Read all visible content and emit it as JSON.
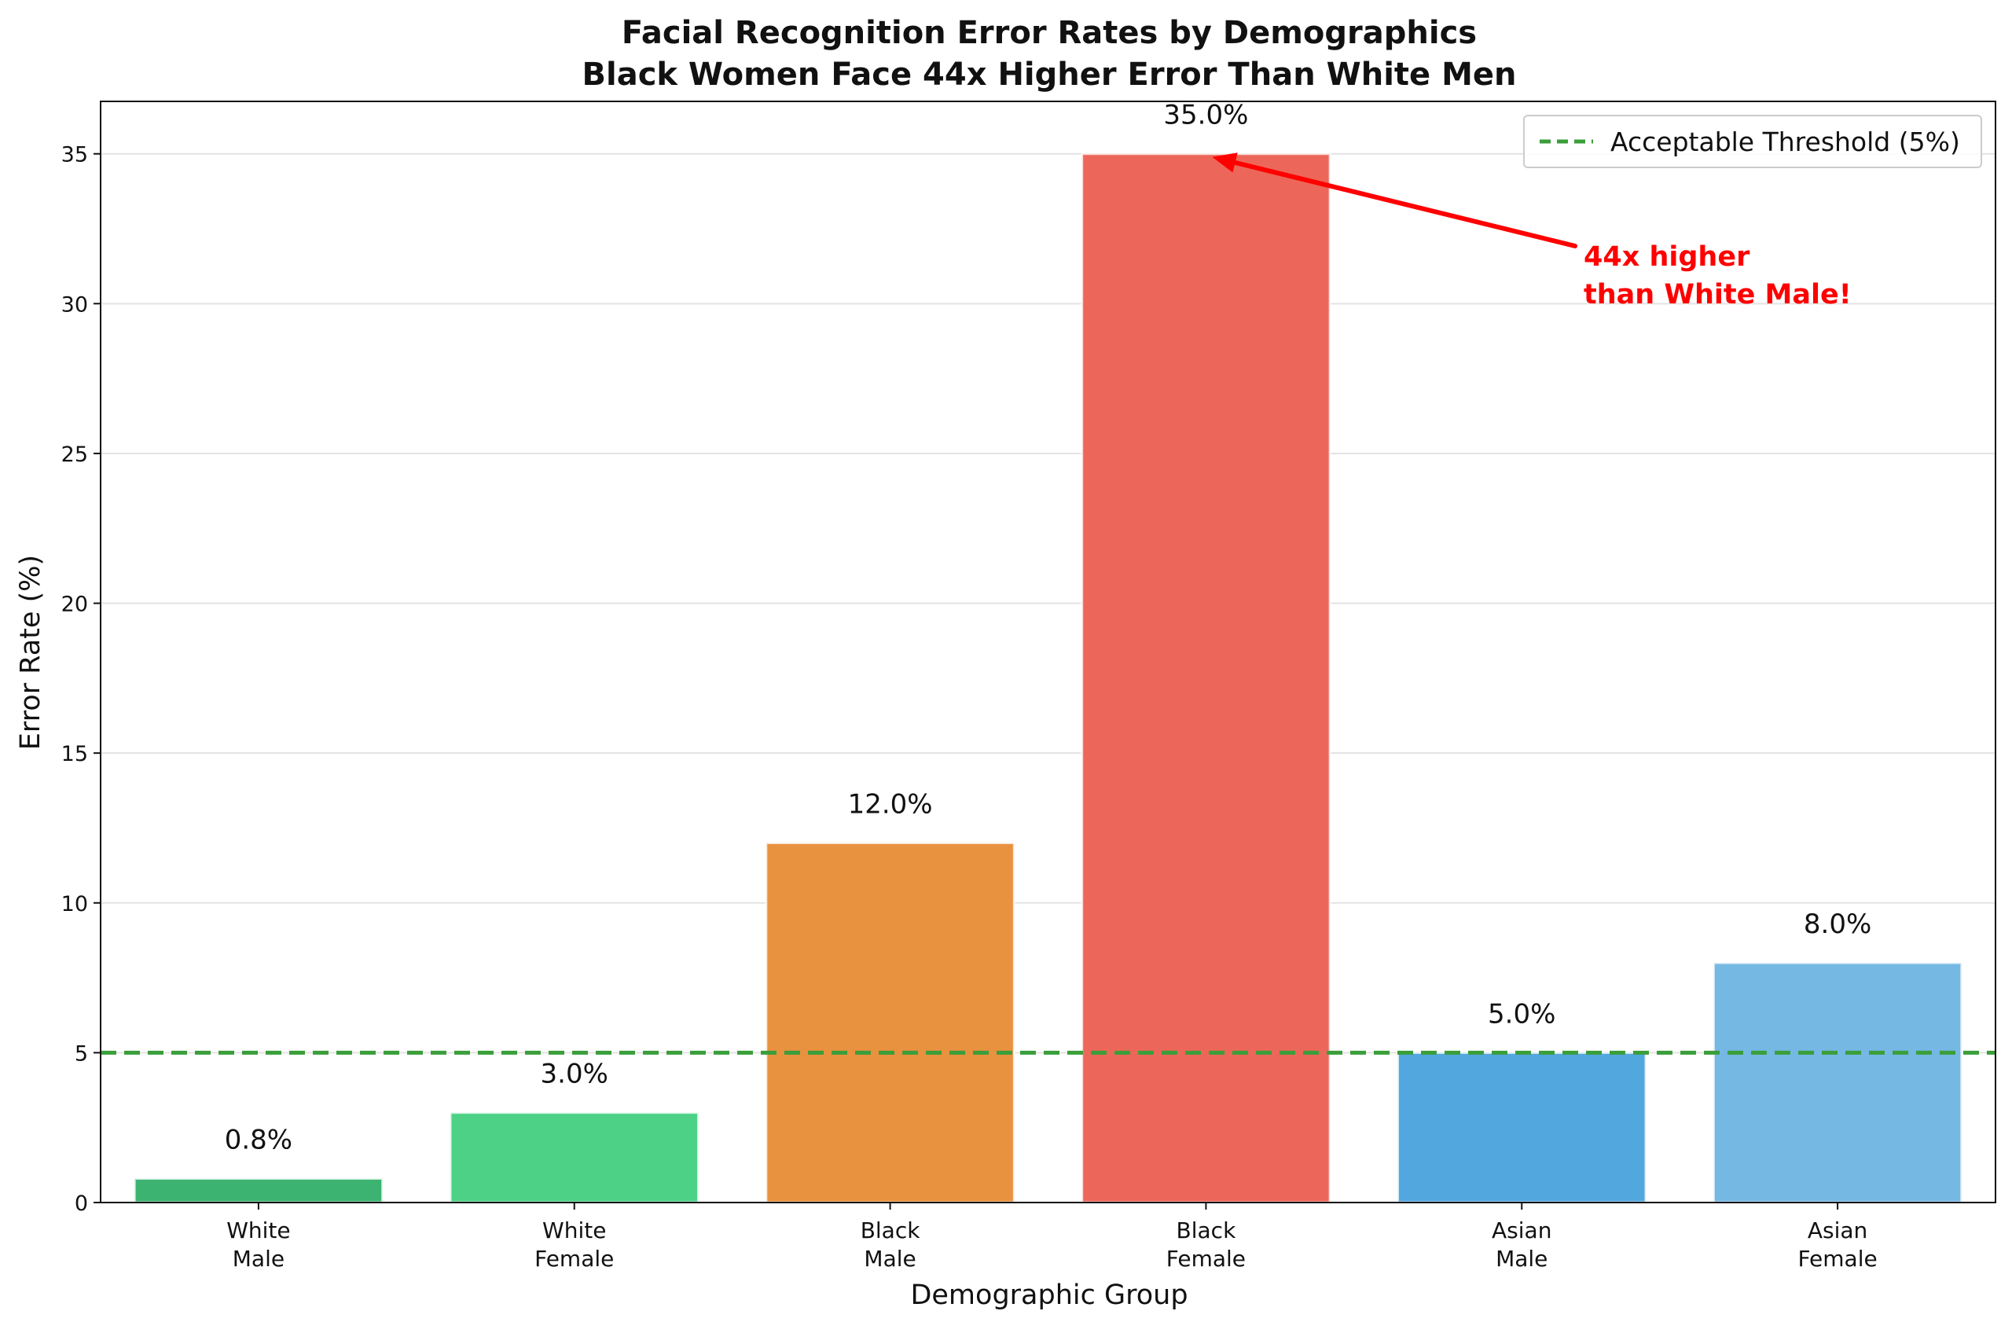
{
  "chart_data": {
    "type": "bar",
    "title_lines": [
      "Facial Recognition Error Rates by Demographics",
      "Black Women Face 44x Higher Error Than White Men"
    ],
    "xlabel": "Demographic Group",
    "ylabel": "Error Rate (%)",
    "ylim": [
      0,
      36.75
    ],
    "yticks": [
      0,
      5,
      10,
      15,
      20,
      25,
      30,
      35
    ],
    "grid": "horizontal",
    "categories": [
      [
        "White",
        "Male"
      ],
      [
        "White",
        "Female"
      ],
      [
        "Black",
        "Male"
      ],
      [
        "Black",
        "Female"
      ],
      [
        "Asian",
        "Male"
      ],
      [
        "Asian",
        "Female"
      ]
    ],
    "values": [
      0.8,
      3.0,
      12.0,
      35.0,
      5.0,
      8.0
    ],
    "value_labels": [
      "0.8%",
      "3.0%",
      "12.0%",
      "35.0%",
      "5.0%",
      "8.0%"
    ],
    "bar_colors": [
      "#3cb371",
      "#4cd187",
      "#e8913f",
      "#ec6759",
      "#53a7df",
      "#76b8e4"
    ],
    "threshold": {
      "value": 5,
      "label": "Acceptable Threshold (5%)",
      "color": "#3a9e3a",
      "style": "dashed"
    },
    "legend": {
      "position": "top-right",
      "entries": [
        "Acceptable Threshold (5%)"
      ]
    },
    "annotation": {
      "lines": [
        "44x higher",
        "than White Male!"
      ],
      "color": "#ff0000",
      "points_to_category_index": 3
    }
  }
}
